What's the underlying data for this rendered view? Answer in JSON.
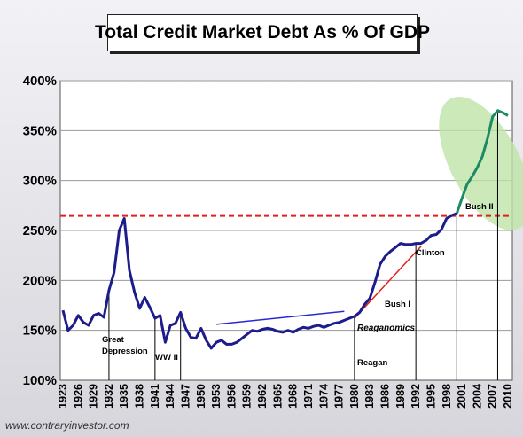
{
  "chart_data": {
    "type": "line",
    "title": "Total Credit Market Debt As % Of GDP",
    "ylim": [
      100,
      400
    ],
    "xlim": [
      1923,
      2010
    ],
    "y_ticks": [
      "100%",
      "150%",
      "200%",
      "250%",
      "300%",
      "350%",
      "400%"
    ],
    "y_tick_values": [
      100,
      150,
      200,
      250,
      300,
      350,
      400
    ],
    "x_ticks": [
      "1923",
      "1926",
      "1929",
      "1932",
      "1935",
      "1938",
      "1941",
      "1944",
      "1947",
      "1950",
      "1953",
      "1956",
      "1959",
      "1962",
      "1965",
      "1968",
      "1971",
      "1974",
      "1977",
      "1980",
      "1983",
      "1986",
      "1989",
      "1992",
      "1995",
      "1998",
      "2001",
      "2004",
      "2007",
      "2010"
    ],
    "grid": "horizontal",
    "series": [
      {
        "color": "#1c1c8c",
        "x": [
          1923,
          1924,
          1925,
          1926,
          1927,
          1928,
          1929,
          1930,
          1931,
          1932,
          1933,
          1934,
          1935,
          1936,
          1937,
          1938,
          1939,
          1940,
          1941,
          1942,
          1943,
          1944,
          1945,
          1946,
          1947,
          1948,
          1949,
          1950,
          1951,
          1952,
          1953,
          1954,
          1955,
          1956,
          1957,
          1958,
          1959,
          1960,
          1961,
          1962,
          1963,
          1964,
          1965,
          1966,
          1967,
          1968,
          1969,
          1970,
          1971,
          1972,
          1973,
          1974,
          1975,
          1976,
          1977,
          1978,
          1979,
          1980,
          1981,
          1982,
          1983,
          1984,
          1985,
          1986,
          1987,
          1988,
          1989,
          1990,
          1991,
          1992,
          1993,
          1994,
          1995,
          1996,
          1997,
          1998,
          1999,
          2000
        ],
        "values": [
          170,
          150,
          155,
          165,
          158,
          155,
          165,
          167,
          163,
          190,
          208,
          250,
          262,
          210,
          188,
          172,
          183,
          173,
          162,
          165,
          138,
          155,
          157,
          168,
          152,
          143,
          142,
          152,
          140,
          132,
          138,
          140,
          136,
          136,
          138,
          142,
          146,
          150,
          149,
          151,
          152,
          151,
          149,
          148,
          150,
          148,
          151,
          153,
          152,
          154,
          155,
          153,
          155,
          157,
          158,
          160,
          162,
          164,
          168,
          176,
          182,
          198,
          216,
          224,
          229,
          233,
          237,
          236,
          236,
          237,
          237,
          240,
          245,
          246,
          251,
          262,
          265,
          267
        ]
      },
      {
        "color": "#1e8a64",
        "x": [
          2000,
          2001,
          2002,
          2003,
          2004,
          2005,
          2006,
          2007,
          2008,
          2009,
          2010
        ],
        "values": [
          267,
          282,
          296,
          304,
          313,
          324,
          342,
          364,
          370,
          368,
          365
        ]
      }
    ],
    "reference_lines": [
      {
        "style": "dashed",
        "color": "#e02020",
        "value": 265
      },
      {
        "style": "solid",
        "color": "#2828d2",
        "x": [
          1953,
          1978
        ],
        "values": [
          156,
          169
        ]
      },
      {
        "style": "solid",
        "color": "#e02020",
        "x": [
          1980,
          1993
        ],
        "values": [
          162,
          234
        ]
      }
    ],
    "era_lines": [
      1932,
      1941,
      1946,
      1980,
      1992,
      2000,
      2008
    ],
    "annotations": [
      {
        "text": "Great",
        "x": 1932
      },
      {
        "text": "Depression",
        "x": 1932
      },
      {
        "text": "WW II",
        "x": 1941
      },
      {
        "text": "Reaganomics",
        "x": 1980
      },
      {
        "text": "Reagan",
        "x": 1980
      },
      {
        "text": "Bush I",
        "x": 1988
      },
      {
        "text": "Clinton",
        "x": 1992
      },
      {
        "text": "Bush II",
        "x": 2001
      }
    ],
    "highlight": {
      "shape": "ellipse",
      "color": "#bfe3a8",
      "x_range": [
        2000,
        2010
      ],
      "y_range": [
        265,
        380
      ]
    }
  },
  "watermark": "www.contraryinvestor.com"
}
